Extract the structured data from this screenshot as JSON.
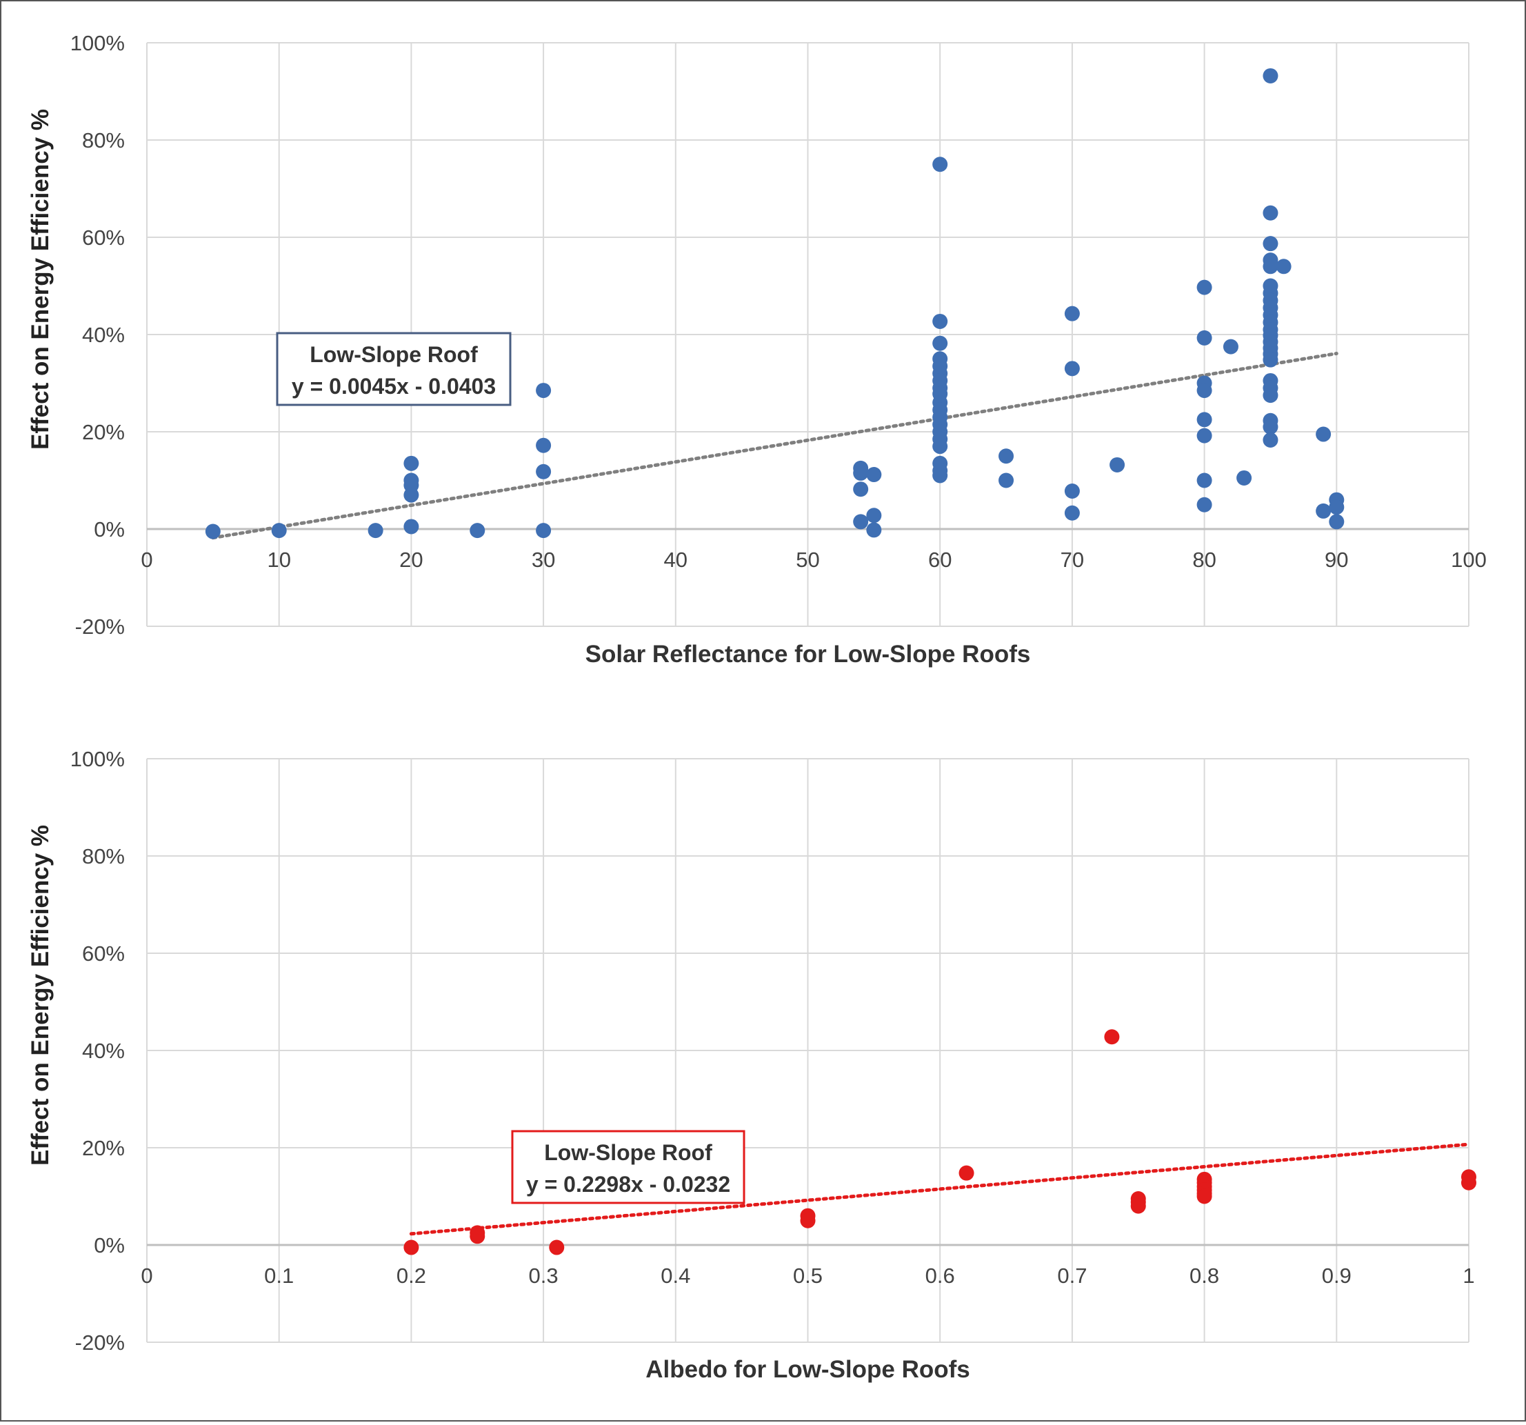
{
  "colors": {
    "blue": "#3f6fb3",
    "red": "#e31b1b",
    "grid": "#d9d9d9",
    "axis": "#bfbfbf",
    "text": "#444444",
    "blue_box_border": "#485d82"
  },
  "chart_data": [
    {
      "type": "scatter",
      "xlabel": "Solar Reflectance for Low-Slope Roofs",
      "ylabel": "Effect on Energy Efficiency %",
      "xlim": [
        0,
        100
      ],
      "ylim": [
        -20,
        100
      ],
      "xticks": [
        "0",
        "10",
        "20",
        "30",
        "40",
        "50",
        "60",
        "70",
        "80",
        "90",
        "100"
      ],
      "yticks": [
        "100%",
        "80%",
        "60%",
        "40%",
        "20%",
        "0%",
        "-20%"
      ],
      "grid": true,
      "color": "#3f6fb3",
      "annotation": {
        "line1": "Low-Slope Roof",
        "line2": "y = 0.0045x - 0.0403"
      },
      "trendline": {
        "style": "dotted",
        "x": [
          5,
          90
        ],
        "y": [
          -1.8,
          36.1
        ]
      },
      "points": [
        [
          5,
          -0.5
        ],
        [
          10,
          -0.3
        ],
        [
          17.3,
          -0.3
        ],
        [
          20,
          13.5
        ],
        [
          20,
          10
        ],
        [
          20,
          9
        ],
        [
          20,
          7
        ],
        [
          20,
          0.5
        ],
        [
          25,
          -0.3
        ],
        [
          30,
          28.5
        ],
        [
          30,
          17.2
        ],
        [
          30,
          11.8
        ],
        [
          30,
          -0.3
        ],
        [
          54,
          12.5
        ],
        [
          54,
          11.5
        ],
        [
          54,
          8.2
        ],
        [
          54,
          1.5
        ],
        [
          55,
          11.2
        ],
        [
          55,
          2.8
        ],
        [
          55,
          -0.2
        ],
        [
          60,
          75
        ],
        [
          60,
          42.7
        ],
        [
          60,
          38.2
        ],
        [
          60,
          35
        ],
        [
          60,
          33.5
        ],
        [
          60,
          32
        ],
        [
          60,
          30.5
        ],
        [
          60,
          29
        ],
        [
          60,
          27.8
        ],
        [
          60,
          26
        ],
        [
          60,
          24.5
        ],
        [
          60,
          23
        ],
        [
          60,
          21.5
        ],
        [
          60,
          20
        ],
        [
          60,
          18.5
        ],
        [
          60,
          17
        ],
        [
          60,
          13.5
        ],
        [
          60,
          12
        ],
        [
          60,
          11
        ],
        [
          65,
          15
        ],
        [
          65,
          10
        ],
        [
          70,
          44.3
        ],
        [
          70,
          33
        ],
        [
          70,
          7.8
        ],
        [
          70,
          3.3
        ],
        [
          73.4,
          13.2
        ],
        [
          80,
          49.7
        ],
        [
          80,
          39.3
        ],
        [
          80,
          30
        ],
        [
          80,
          28.5
        ],
        [
          80,
          22.5
        ],
        [
          80,
          19.2
        ],
        [
          80,
          10
        ],
        [
          80,
          5
        ],
        [
          82,
          37.5
        ],
        [
          83,
          10.5
        ],
        [
          85,
          93.2
        ],
        [
          85,
          65
        ],
        [
          85,
          58.7
        ],
        [
          85,
          55.3
        ],
        [
          85,
          54
        ],
        [
          85,
          50
        ],
        [
          85,
          48.5
        ],
        [
          85,
          47
        ],
        [
          85,
          45.5
        ],
        [
          85,
          44
        ],
        [
          85,
          42.5
        ],
        [
          85,
          41
        ],
        [
          85,
          39.8
        ],
        [
          85,
          38.5
        ],
        [
          85,
          37.2
        ],
        [
          85,
          36
        ],
        [
          85,
          34.8
        ],
        [
          85,
          30.5
        ],
        [
          85,
          29
        ],
        [
          85,
          27.5
        ],
        [
          85,
          22.3
        ],
        [
          85,
          21
        ],
        [
          85,
          18.3
        ],
        [
          86,
          54
        ],
        [
          89,
          19.5
        ],
        [
          89,
          3.7
        ],
        [
          90,
          6
        ],
        [
          90,
          4.5
        ],
        [
          90,
          1.5
        ]
      ]
    },
    {
      "type": "scatter",
      "xlabel": "Albedo for Low-Slope Roofs",
      "ylabel": "Effect on Energy Efficiency %",
      "xlim": [
        0,
        1
      ],
      "ylim": [
        -20,
        100
      ],
      "xticks": [
        "0",
        "0.1",
        "0.2",
        "0.3",
        "0.4",
        "0.5",
        "0.6",
        "0.7",
        "0.8",
        "0.9",
        "1"
      ],
      "yticks": [
        "100%",
        "80%",
        "60%",
        "40%",
        "20%",
        "0%",
        "-20%"
      ],
      "grid": true,
      "color": "#e31b1b",
      "annotation": {
        "line1": "Low-Slope Roof",
        "line2": "y = 0.2298x - 0.0232"
      },
      "trendline": {
        "style": "dotted",
        "x": [
          0.2,
          1.0
        ],
        "y": [
          2.3,
          20.7
        ]
      },
      "points": [
        [
          0.2,
          -0.5
        ],
        [
          0.25,
          2.5
        ],
        [
          0.25,
          1.8
        ],
        [
          0.31,
          -0.5
        ],
        [
          0.5,
          6
        ],
        [
          0.5,
          5
        ],
        [
          0.62,
          14.8
        ],
        [
          0.73,
          42.8
        ],
        [
          0.75,
          9.5
        ],
        [
          0.75,
          8.8
        ],
        [
          0.75,
          8
        ],
        [
          0.8,
          13.5
        ],
        [
          0.8,
          12.8
        ],
        [
          0.8,
          12
        ],
        [
          0.8,
          11.3
        ],
        [
          0.8,
          10.6
        ],
        [
          0.8,
          10
        ],
        [
          1.0,
          14
        ],
        [
          1.0,
          12.8
        ]
      ]
    }
  ]
}
